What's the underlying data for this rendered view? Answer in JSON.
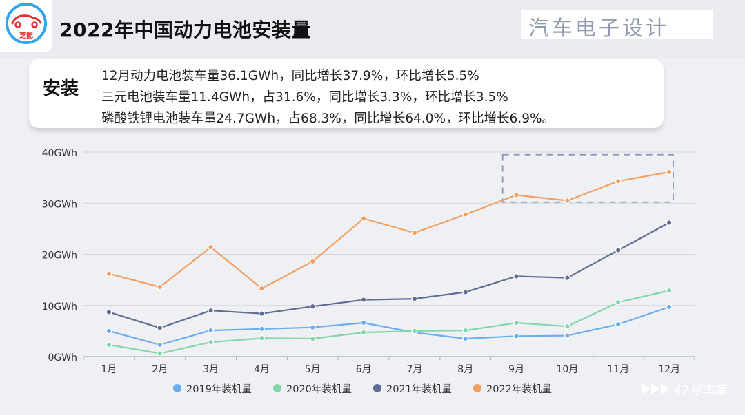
{
  "header": {
    "logo_text": "芝能",
    "title": "2022年中国动力电池安装量",
    "watermark": "汽车电子设计"
  },
  "info": {
    "tag": "安装",
    "lines": [
      "12月动力电池装车量36.1GWh，同比增长37.9%，环比增长5.5%",
      "三元电池装车量11.4GWh，占31.6%，同比增长3.3%，环比增长3.5%",
      "磷酸铁锂电池装车量24.7GWh，占68.3%，同比增长64.0%，环比增长6.9%。"
    ]
  },
  "footer": {
    "brand": "42号车库"
  },
  "colors": {
    "series_2019": "#6aaef0",
    "series_2020": "#82d6aa",
    "series_2021": "#5f6d95",
    "series_2022": "#f2a061",
    "highlight_box": "#8a94b8",
    "grid": "#d3d6dd"
  },
  "chart_data": {
    "type": "line",
    "categories": [
      "1月",
      "2月",
      "3月",
      "4月",
      "5月",
      "6月",
      "7月",
      "8月",
      "9月",
      "10月",
      "11月",
      "12月"
    ],
    "y_ticks": [
      "0GWh",
      "10GWh",
      "20GWh",
      "30GWh",
      "40GWh"
    ],
    "ylim": [
      0,
      40
    ],
    "unit": "GWh",
    "grid": true,
    "legend_position": "bottom",
    "highlight": {
      "from_category": "9月",
      "to_category": "12月",
      "y_range": [
        30.2,
        39.5
      ],
      "style": "dashed"
    },
    "series": [
      {
        "name": "2019年装机量",
        "values": [
          5.0,
          2.3,
          5.1,
          5.4,
          5.7,
          6.6,
          4.7,
          3.5,
          4.0,
          4.1,
          6.3,
          9.7
        ]
      },
      {
        "name": "2020年装机量",
        "values": [
          2.3,
          0.6,
          2.8,
          3.6,
          3.5,
          4.7,
          5.0,
          5.1,
          6.6,
          5.9,
          10.6,
          12.9
        ]
      },
      {
        "name": "2021年装机量",
        "values": [
          8.7,
          5.6,
          9.0,
          8.4,
          9.8,
          11.1,
          11.3,
          12.6,
          15.7,
          15.4,
          20.8,
          26.2
        ]
      },
      {
        "name": "2022年装机量",
        "values": [
          16.2,
          13.6,
          21.4,
          13.3,
          18.6,
          27.0,
          24.2,
          27.8,
          31.6,
          30.5,
          34.3,
          36.1
        ]
      }
    ]
  }
}
